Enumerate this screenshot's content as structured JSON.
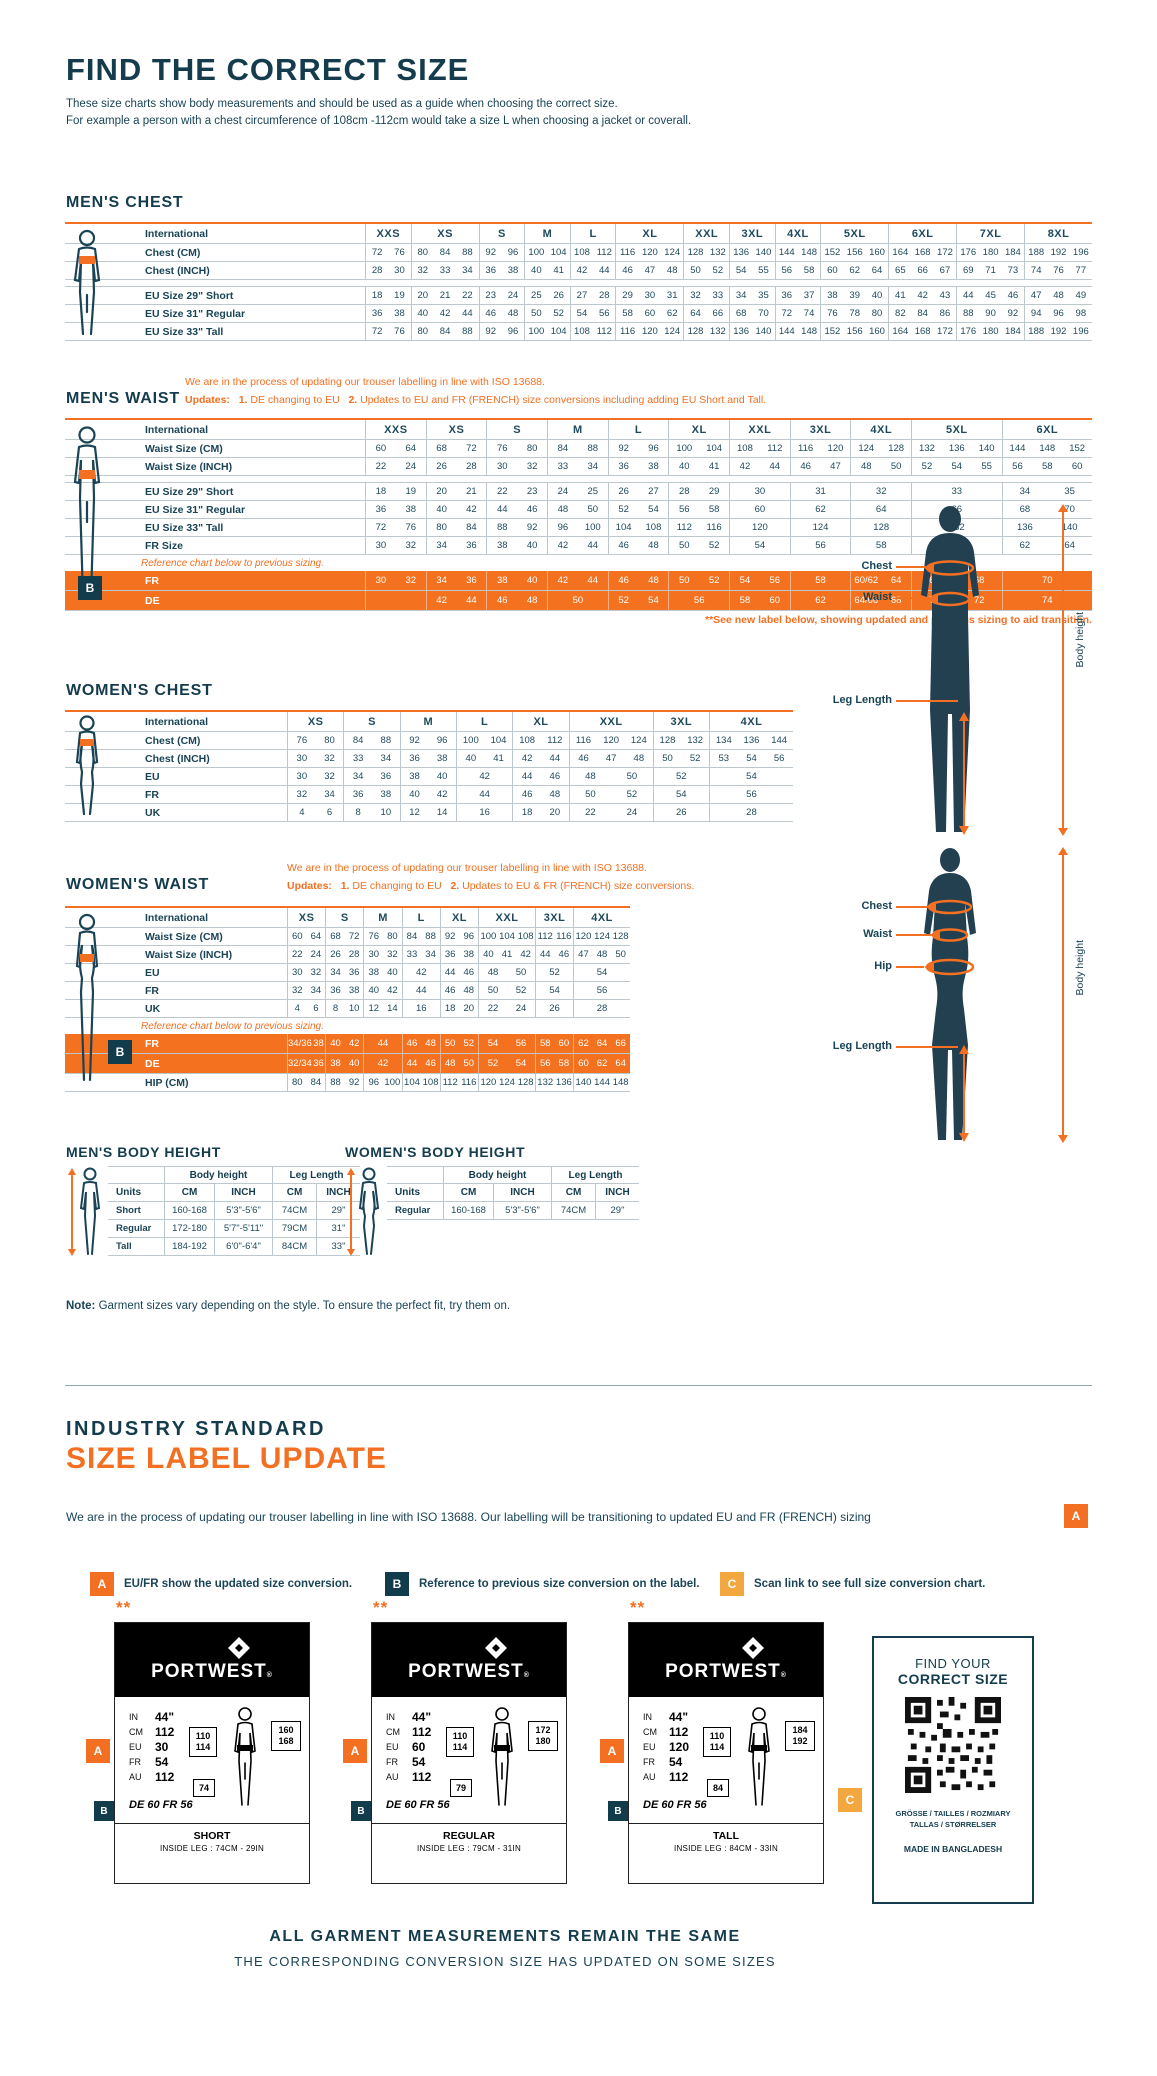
{
  "page": {
    "title": "FIND THE CORRECT SIZE",
    "subtitle1": "These size charts show body measurements and should be used as a guide when choosing the correct size.",
    "subtitle2": "For example a person with a chest circumference of 108cm -112cm would take a size L when choosing a jacket or coverall."
  },
  "colors": {
    "navy": "#143C4D",
    "orange": "#F36F21",
    "amber": "#F2A73F"
  },
  "common": {
    "international": "International",
    "reference_note": "Reference chart below to previous sizing.",
    "see_note": "**See new label below, showing updated and previous sizing to aid transition.",
    "iso_line": "We are in the process of updating our trouser labelling in line with ISO 13688.",
    "updates_label": "Updates:",
    "u1_num": "1.",
    "u1": " DE changing to EU",
    "u2_num": "2.",
    "u2_mens": " Updates to EU and FR (FRENCH) size conversions including adding EU Short and Tall.",
    "u2_womens": " Updates to EU & FR (FRENCH) size conversions."
  },
  "tables": {
    "mens_chest": {
      "title": "MEN'S CHEST",
      "sizes": [
        "XXS",
        "XS",
        "S",
        "M",
        "L",
        "XL",
        "XXL",
        "3XL",
        "4XL",
        "5XL",
        "6XL",
        "7XL",
        "8XL"
      ],
      "rows": [
        {
          "label": "Chest (CM)",
          "cells": [
            "72 76",
            "80 84 88",
            "92 96",
            "100 104",
            "108 112",
            "116 120 124",
            "128 132",
            "136 140",
            "144 148",
            "152 156 160",
            "164 168 172",
            "176 180 184",
            "188 192 196"
          ]
        },
        {
          "label": "Chest (INCH)",
          "cells": [
            "28 30",
            "32 33 34",
            "36 38",
            "40 41",
            "42 44",
            "46 47 48",
            "50 52",
            "54 55",
            "56 58",
            "60 62 64",
            "65 66 67",
            "69 71 73",
            "74 76 77"
          ]
        },
        {
          "gap": true
        },
        {
          "label": "EU Size 29\" Short",
          "cells": [
            "18 19",
            "20 21 22",
            "23 24",
            "25 26",
            "27 28",
            "29 30 31",
            "32 33",
            "34 35",
            "36 37",
            "38 39 40",
            "41 42 43",
            "44 45 46",
            "47 48 49"
          ]
        },
        {
          "label": "EU Size 31\" Regular",
          "cells": [
            "36 38",
            "40 42 44",
            "46 48",
            "50 52",
            "54 56",
            "58 60 62",
            "64 66",
            "68 70",
            "72 74",
            "76 78 80",
            "82 84 86",
            "88 90 92",
            "94 96 98"
          ]
        },
        {
          "label": "EU Size 33\" Tall",
          "cells": [
            "72 76",
            "80 84 88",
            "92 96",
            "100 104",
            "108 112",
            "116 120 124",
            "128 132",
            "136 140",
            "144 148",
            "152 156 160",
            "164 168 172",
            "176 180 184",
            "188 192 196"
          ]
        }
      ]
    },
    "mens_waist": {
      "title": "MEN'S WAIST",
      "sizes": [
        "XXS",
        "XS",
        "S",
        "M",
        "L",
        "XL",
        "XXL",
        "3XL",
        "4XL",
        "5XL",
        "6XL"
      ],
      "rows": [
        {
          "label": "Waist Size (CM)",
          "cells": [
            "60 64",
            "68 72",
            "76 80",
            "84 88",
            "92 96",
            "100 104",
            "108 112",
            "116 120",
            "124 128",
            "132 136 140",
            "144 148 152"
          ]
        },
        {
          "label": "Waist Size (INCH)",
          "cells": [
            "22 24",
            "26 28",
            "30 32",
            "33 34",
            "36 38",
            "40 41",
            "42 44",
            "46 47",
            "48 50",
            "52 54 55",
            "56 58 60"
          ]
        },
        {
          "gap": true
        },
        {
          "label": "EU Size 29\" Short",
          "cells": [
            "18 19",
            "20 21",
            "22 23",
            "24 25",
            "26 27",
            "28 29",
            "30",
            "31",
            "32",
            "33",
            "34 35"
          ]
        },
        {
          "label": "EU Size 31\" Regular",
          "cells": [
            "36 38",
            "40 42",
            "44 46",
            "48 50",
            "52 54",
            "56 58",
            "60",
            "62",
            "64",
            "66",
            "68 70"
          ]
        },
        {
          "label": "EU Size 33\" Tall",
          "cells": [
            "72 76",
            "80 84",
            "88 92",
            "96 100",
            "104 108",
            "112 116",
            "120",
            "124",
            "128",
            "132",
            "136 140"
          ]
        },
        {
          "label": "FR Size",
          "cells": [
            "30 32",
            "34 36",
            "38 40",
            "42 44",
            "46 48",
            "50 52",
            "54",
            "56",
            "58",
            "60",
            "62 64"
          ]
        },
        {
          "note": true
        },
        {
          "label": "FR",
          "orange": true,
          "cells": [
            "30 32",
            "34 36",
            "38 40",
            "42 44",
            "46 48",
            "50 52",
            "54 56",
            "58",
            "60/62 64",
            "66 68",
            "70"
          ]
        },
        {
          "label": "DE",
          "orange": true,
          "cells": [
            "",
            "42 44",
            "46 48",
            "50",
            "52 54",
            "56",
            "58 60",
            "62",
            "64/66 68",
            "70 72",
            "74"
          ]
        }
      ]
    },
    "womens_chest": {
      "title": "WOMEN'S CHEST",
      "sizes": [
        "XS",
        "S",
        "M",
        "L",
        "XL",
        "XXL",
        "3XL",
        "4XL"
      ],
      "rows": [
        {
          "label": "Chest (CM)",
          "cells": [
            "76 80",
            "84 88",
            "92 96",
            "100 104",
            "108 112",
            "116 120 124",
            "128 132",
            "134 136 144"
          ]
        },
        {
          "label": "Chest (INCH)",
          "cells": [
            "30 32",
            "33 34",
            "36 38",
            "40 41",
            "42 44",
            "46 47 48",
            "50 52",
            "53 54 56"
          ]
        },
        {
          "label": "EU",
          "cells": [
            "30 32",
            "34 36",
            "38 40",
            "42",
            "44 46",
            "48 50",
            "52",
            "54"
          ]
        },
        {
          "label": "FR",
          "cells": [
            "32 34",
            "36 38",
            "40 42",
            "44",
            "46 48",
            "50 52",
            "54",
            "56"
          ]
        },
        {
          "label": "UK",
          "cells": [
            "4 6",
            "8 10",
            "12 14",
            "16",
            "18 20",
            "22 24",
            "26",
            "28"
          ]
        }
      ]
    },
    "womens_waist": {
      "title": "WOMEN'S WAIST",
      "sizes": [
        "XS",
        "S",
        "M",
        "L",
        "XL",
        "XXL",
        "3XL",
        "4XL"
      ],
      "rows": [
        {
          "label": "Waist Size (CM)",
          "cells": [
            "60 64",
            "68 72",
            "76 80",
            "84 88",
            "92 96",
            "100 104 108",
            "112 116",
            "120 124 128"
          ]
        },
        {
          "label": "Waist Size (INCH)",
          "cells": [
            "22 24",
            "26 28",
            "30 32",
            "33 34",
            "36 38",
            "40 41 42",
            "44 46",
            "47 48 50"
          ]
        },
        {
          "label": "EU",
          "cells": [
            "30 32",
            "34 36",
            "38 40",
            "42",
            "44 46",
            "48 50",
            "52",
            "54"
          ]
        },
        {
          "label": "FR",
          "cells": [
            "32 34",
            "36 38",
            "40 42",
            "44",
            "46 48",
            "50 52",
            "54",
            "56"
          ]
        },
        {
          "label": "UK",
          "cells": [
            "4 6",
            "8 10",
            "12 14",
            "16",
            "18 20",
            "22 24",
            "26",
            "28"
          ]
        },
        {
          "note": true
        },
        {
          "label": "FR",
          "orange": true,
          "cells": [
            "34/36 38",
            "40 42",
            "44",
            "46 48",
            "50 52",
            "54 56",
            "58 60",
            "62 64 66"
          ]
        },
        {
          "label": "DE",
          "orange": true,
          "cells": [
            "32/34 36",
            "38 40",
            "42",
            "44 46",
            "48 50",
            "52 54",
            "56 58",
            "60 62 64"
          ]
        },
        {
          "label": "HIP (CM)",
          "cells": [
            "80 84",
            "88 92",
            "96 100",
            "104 108",
            "112 116",
            "120 124 128",
            "132 136",
            "140 144 148"
          ]
        }
      ]
    }
  },
  "body_height": {
    "mens": {
      "title": "MEN'S BODY HEIGHT",
      "group1": "Body height",
      "group2": "Leg Length",
      "units_label": "Units",
      "cols": [
        "CM",
        "INCH",
        "CM",
        "INCH"
      ],
      "rows": [
        [
          "Short",
          "160-168",
          "5'3\"-5'6\"",
          "74CM",
          "29\""
        ],
        [
          "Regular",
          "172-180",
          "5'7\"-5'11\"",
          "79CM",
          "31\""
        ],
        [
          "Tall",
          "184-192",
          "6'0\"-6'4\"",
          "84CM",
          "33\""
        ]
      ]
    },
    "womens": {
      "title": "WOMEN'S BODY HEIGHT",
      "group1": "Body height",
      "group2": "Leg Length",
      "units_label": "Units",
      "cols": [
        "CM",
        "INCH",
        "CM",
        "INCH"
      ],
      "rows": [
        [
          "Regular",
          "160-168",
          "5'3\"-5'6\"",
          "74CM",
          "29\""
        ]
      ]
    }
  },
  "figure": {
    "chest": "Chest",
    "waist": "Waist",
    "hip": "Hip",
    "leg_length": "Leg Length",
    "body_height": "Body height"
  },
  "note": {
    "bold": "Note:",
    "text": " Garment sizes vary depending on the style. To ensure the perfect fit, try them on."
  },
  "industry": {
    "heading1": "INDUSTRY STANDARD",
    "heading2": "SIZE LABEL UPDATE",
    "paragraph": "We are in the process of updating our trouser labelling in line with ISO 13688. Our labelling will be transitioning to updated EU and FR (FRENCH) sizing",
    "badge_a": "A",
    "badge_b": "B",
    "badge_c": "C",
    "legend": [
      {
        "badge": "A",
        "text": "EU/FR show the updated size conversion."
      },
      {
        "badge": "B",
        "text": "Reference to previous size conversion on the label."
      },
      {
        "badge": "C",
        "text": "Scan link to see full size conversion chart."
      }
    ]
  },
  "size_labels": {
    "stars": "**",
    "brand": "PORTWEST",
    "reg": "®",
    "units": [
      "IN",
      "CM",
      "EU",
      "FR",
      "AU"
    ],
    "items": [
      {
        "values": [
          "44\"",
          "112",
          "30",
          "54",
          "112"
        ],
        "chest_box": "110\n114",
        "height_box": "160\n168",
        "leg_box": "74",
        "de_fr": "DE 60 FR 56",
        "name": "SHORT",
        "inside_leg": "INSIDE LEG : 74CM - 29IN"
      },
      {
        "values": [
          "44\"",
          "112",
          "60",
          "54",
          "112"
        ],
        "chest_box": "110\n114",
        "height_box": "172\n180",
        "leg_box": "79",
        "de_fr": "DE 60 FR 56",
        "name": "REGULAR",
        "inside_leg": "INSIDE LEG : 79CM - 31IN"
      },
      {
        "values": [
          "44\"",
          "112",
          "120",
          "54",
          "112"
        ],
        "chest_box": "110\n114",
        "height_box": "184\n192",
        "leg_box": "84",
        "de_fr": "DE 60 FR 56",
        "name": "TALL",
        "inside_leg": "INSIDE LEG : 84CM - 33IN"
      }
    ]
  },
  "qr": {
    "line1": "FIND YOUR",
    "line2": "CORRECT SIZE",
    "langs1": "GRÖSSE / TAILLES / ROZMIARY",
    "langs2": "TALLAS / STØRRELSER",
    "made": "MADE IN BANGLADESH"
  },
  "footer": {
    "line1": "ALL GARMENT MEASUREMENTS REMAIN THE SAME",
    "line2": "THE CORRESPONDING CONVERSION SIZE HAS UPDATED ON SOME SIZES"
  }
}
